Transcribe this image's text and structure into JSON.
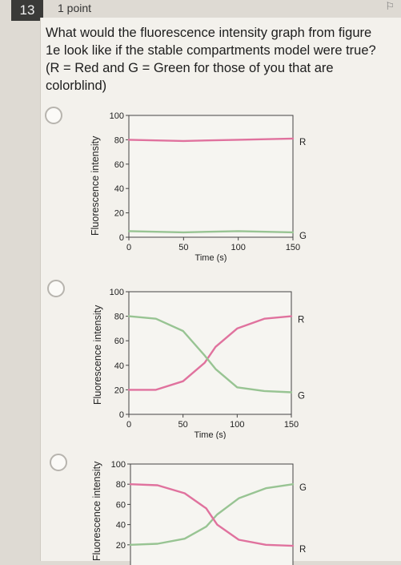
{
  "question": {
    "number": "13",
    "points": "1 point",
    "text": "What would the fluorescence intensity graph from figure 1e look like if the stable compartments model were true? (R = Red and G = Green for those of you that are colorblind)"
  },
  "colors": {
    "red": "#e0729e",
    "green": "#98c493"
  },
  "chart_data": [
    {
      "type": "line",
      "ylabel": "Fluorescence intensity",
      "xlabel": "Time (s)",
      "yticks": [
        "100",
        "80",
        "60",
        "40",
        "20",
        "0"
      ],
      "xticks": [
        "0",
        "50",
        "100",
        "150"
      ],
      "xlim": [
        0,
        150
      ],
      "ylim": [
        0,
        100
      ],
      "series": [
        {
          "name": "R",
          "x": [
            0,
            50,
            100,
            150
          ],
          "y": [
            80,
            79,
            80,
            81
          ]
        },
        {
          "name": "G",
          "x": [
            0,
            50,
            100,
            150
          ],
          "y": [
            5,
            4,
            5,
            4
          ]
        }
      ]
    },
    {
      "type": "line",
      "ylabel": "Fluorescence intensity",
      "xlabel": "Time (s)",
      "yticks": [
        "100",
        "80",
        "60",
        "40",
        "20",
        "0"
      ],
      "xticks": [
        "0",
        "50",
        "100",
        "150"
      ],
      "xlim": [
        0,
        150
      ],
      "ylim": [
        0,
        100
      ],
      "series": [
        {
          "name": "R",
          "x": [
            0,
            25,
            50,
            70,
            80,
            100,
            125,
            150
          ],
          "y": [
            20,
            20,
            27,
            42,
            55,
            70,
            78,
            80
          ]
        },
        {
          "name": "G",
          "x": [
            0,
            25,
            50,
            70,
            80,
            100,
            125,
            150
          ],
          "y": [
            80,
            78,
            68,
            48,
            37,
            22,
            19,
            18
          ]
        }
      ]
    },
    {
      "type": "line",
      "ylabel": "Fluorescence intensity",
      "xlabel": "",
      "yticks": [
        "100",
        "80",
        "60",
        "40",
        "20"
      ],
      "xticks": [],
      "xlim": [
        0,
        150
      ],
      "ylim": [
        0,
        100
      ],
      "series": [
        {
          "name": "G",
          "x": [
            0,
            25,
            50,
            70,
            80,
            100,
            125,
            150
          ],
          "y": [
            20,
            21,
            26,
            38,
            50,
            66,
            76,
            80
          ]
        },
        {
          "name": "R",
          "x": [
            0,
            25,
            50,
            70,
            80,
            100,
            125,
            150
          ],
          "y": [
            80,
            79,
            71,
            56,
            40,
            25,
            20,
            19
          ]
        }
      ]
    }
  ]
}
